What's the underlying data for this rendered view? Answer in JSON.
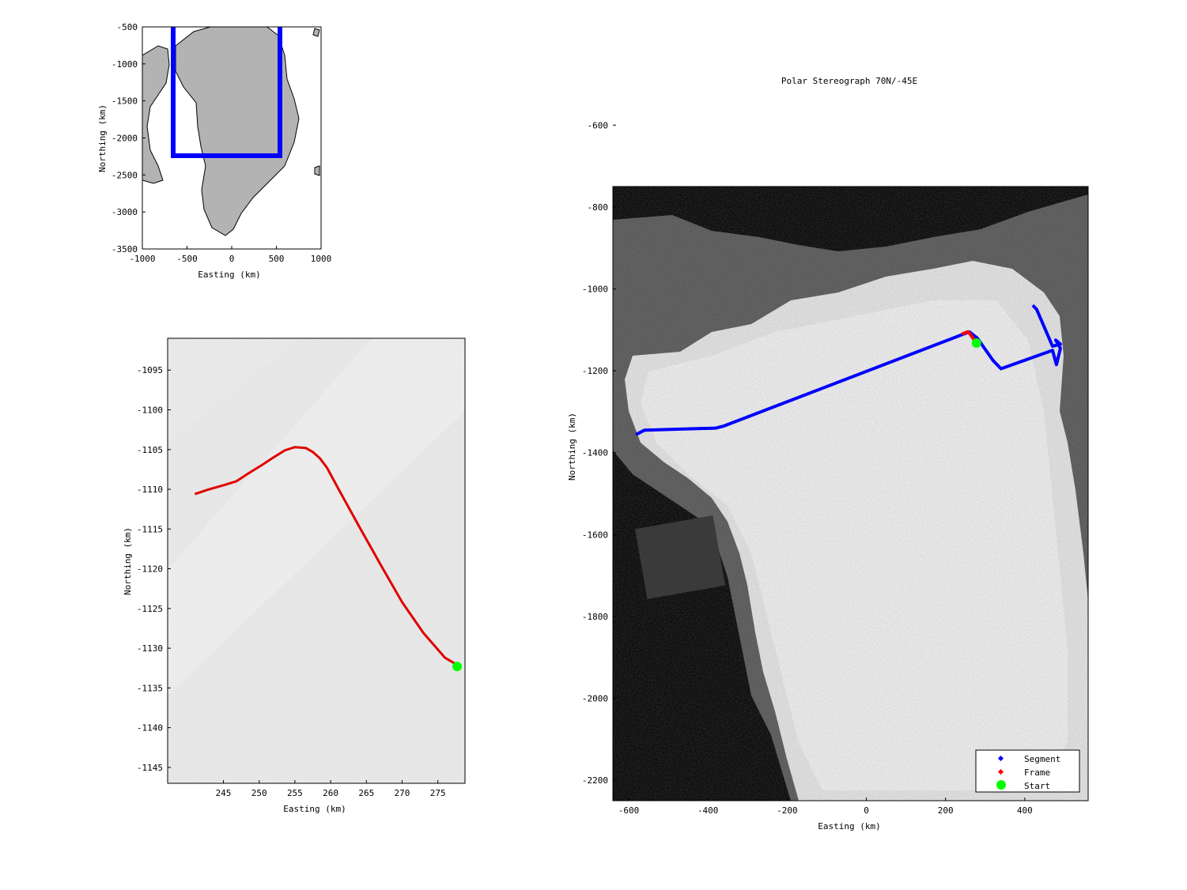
{
  "main_map": {
    "title": "Polar Stereograph 70N/-45E",
    "xlabel": "Easting (km)",
    "ylabel": "Northing (km)",
    "x_ticks": [
      "-600",
      "-400",
      "-200",
      "0",
      "200",
      "400"
    ],
    "y_ticks": [
      "-600",
      "-800",
      "-1000",
      "-1200",
      "-1400",
      "-1600",
      "-1800",
      "-2000",
      "-2200"
    ],
    "legend": [
      {
        "label": "Segment",
        "color": "#0000ff"
      },
      {
        "label": "Frame",
        "color": "#ff0000"
      },
      {
        "label": "Start",
        "color": "#00ff00"
      }
    ]
  },
  "inset_map": {
    "xlabel": "Easting (km)",
    "ylabel": "Northing (km)",
    "x_ticks": [
      "-1000",
      "-500",
      "0",
      "500",
      "1000"
    ],
    "y_ticks": [
      "-500",
      "-1000",
      "-1500",
      "-2000",
      "-2500",
      "-3000",
      "-3500"
    ]
  },
  "zoom_map": {
    "xlabel": "Easting (km)",
    "ylabel": "Northing (km)",
    "x_ticks": [
      "245",
      "250",
      "255",
      "260",
      "265",
      "270",
      "275"
    ],
    "y_ticks": [
      "-1095",
      "-1100",
      "-1105",
      "-1110",
      "-1115",
      "-1120",
      "-1125",
      "-1130",
      "-1135",
      "-1140",
      "-1145"
    ]
  },
  "chart_data": [
    {
      "type": "scatter",
      "title": "Polar Stereograph 70N/-45E",
      "xlabel": "Easting (km)",
      "ylabel": "Northing (km)",
      "xlim": [
        -640,
        560
      ],
      "ylim": [
        -2250,
        -600
      ],
      "series": [
        {
          "name": "Segment",
          "color": "#0000ff",
          "x": [
            -582,
            -560,
            -380,
            -360,
            260,
            280,
            320,
            340,
            470,
            480,
            490,
            478,
            490,
            470,
            430,
            420
          ],
          "y": [
            -1356,
            -1345,
            -1340,
            -1335,
            -1105,
            -1120,
            -1175,
            -1195,
            -1150,
            -1185,
            -1145,
            -1125,
            -1135,
            -1140,
            -1050,
            -1040
          ]
        },
        {
          "name": "Frame",
          "color": "#ff0000",
          "x": [
            241,
            255,
            260,
            278
          ],
          "y": [
            -1110.5,
            -1104.8,
            -1108,
            -1132.3
          ]
        },
        {
          "name": "Start",
          "color": "#00ff00",
          "x": [
            278
          ],
          "y": [
            -1132.3
          ]
        }
      ]
    },
    {
      "type": "line",
      "xlabel": "Easting (km)",
      "ylabel": "Northing (km)",
      "xlim": [
        241,
        278.8
      ],
      "ylim": [
        -1147,
        -1091
      ],
      "series": [
        {
          "name": "Frame",
          "color": "#ff0000",
          "x": [
            241,
            243,
            245,
            246.8,
            248.5,
            250.3,
            252,
            253.6,
            255,
            256.5,
            257.5,
            258.5,
            259.5,
            261,
            264,
            267,
            270,
            273,
            276,
            277.7
          ],
          "y": [
            -1110.6,
            -1110,
            -1109.5,
            -1109,
            -1108,
            -1107,
            -1106,
            -1105.1,
            -1104.7,
            -1104.8,
            -1105.3,
            -1106.1,
            -1107.3,
            -1109.8,
            -1114.7,
            -1119.5,
            -1124.2,
            -1128.1,
            -1131.2,
            -1132.1
          ]
        },
        {
          "name": "Start",
          "color": "#00ff00",
          "x": [
            277.7
          ],
          "y": [
            -1132.3
          ]
        }
      ]
    },
    {
      "type": "scatter",
      "xlabel": "Easting (km)",
      "ylabel": "Northing (km)",
      "xlim": [
        -1000,
        1000
      ],
      "ylim": [
        -3500,
        -500
      ],
      "series": [
        {
          "name": "extent",
          "color": "#0000ff",
          "x": [
            -640,
            -640,
            560,
            560
          ],
          "y": [
            -500,
            -2250,
            -2250,
            -500
          ]
        }
      ]
    }
  ]
}
